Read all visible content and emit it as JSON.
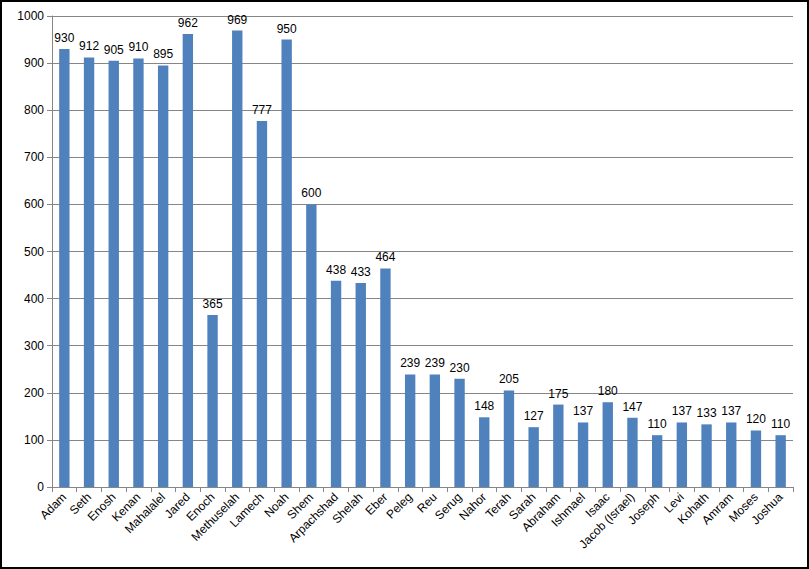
{
  "chart_data": {
    "type": "bar",
    "categories": [
      "Adam",
      "Seth",
      "Enosh",
      "Kenan",
      "Mahalalel",
      "Jared",
      "Enoch",
      "Methuselah",
      "Lamech",
      "Noah",
      "Shem",
      "Arpachshad",
      "Shelah",
      "Eber",
      "Peleg",
      "Reu",
      "Serug",
      "Nahor",
      "Terah",
      "Sarah",
      "Abraham",
      "Ishmael",
      "Isaac",
      "Jacob (Israel)",
      "Joseph",
      "Levi",
      "Kohath",
      "Amram",
      "Moses",
      "Joshua"
    ],
    "values": [
      930,
      912,
      905,
      910,
      895,
      962,
      365,
      969,
      777,
      950,
      600,
      438,
      433,
      464,
      239,
      239,
      230,
      148,
      205,
      127,
      175,
      137,
      180,
      147,
      110,
      137,
      133,
      137,
      120,
      110
    ],
    "color": "#4f81bd",
    "ylim": [
      0,
      1000
    ],
    "yticks": [
      0,
      100,
      200,
      300,
      400,
      500,
      600,
      700,
      800,
      900,
      1000
    ],
    "grid": true,
    "data_labels": true
  }
}
